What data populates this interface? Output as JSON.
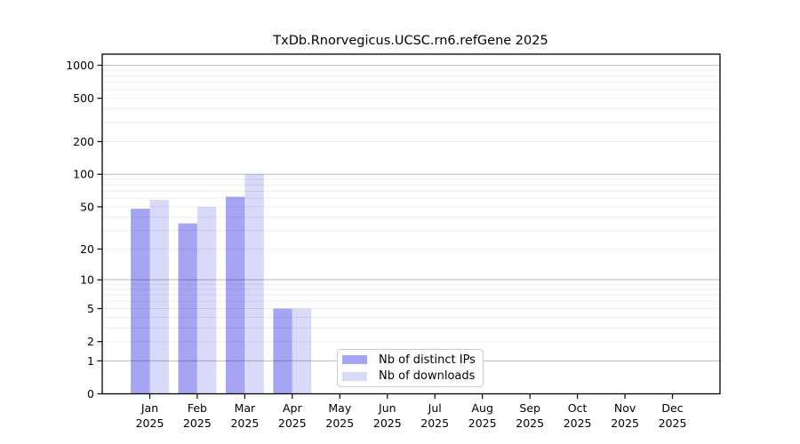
{
  "figure": {
    "title": "TxDb.Rnorvegicus.UCSC.rn6.refGene 2025"
  },
  "chart_data": {
    "type": "bar",
    "title": "TxDb.Rnorvegicus.UCSC.rn6.refGene 2025",
    "categories": [
      "Jan 2025",
      "Feb 2025",
      "Mar 2025",
      "Apr 2025",
      "May 2025",
      "Jun 2025",
      "Jul 2025",
      "Aug 2025",
      "Sep 2025",
      "Oct 2025",
      "Nov 2025",
      "Dec 2025"
    ],
    "x_tick_line1": [
      "Jan",
      "Feb",
      "Mar",
      "Apr",
      "May",
      "Jun",
      "Jul",
      "Aug",
      "Sep",
      "Oct",
      "Nov",
      "Dec"
    ],
    "x_tick_line2": [
      "2025",
      "2025",
      "2025",
      "2025",
      "2025",
      "2025",
      "2025",
      "2025",
      "2025",
      "2025",
      "2025",
      "2025"
    ],
    "series": [
      {
        "name": "Nb of distinct IPs",
        "color": "#a5a5f4",
        "values": [
          48,
          35,
          62,
          5,
          0,
          0,
          0,
          0,
          0,
          0,
          0,
          0
        ]
      },
      {
        "name": "Nb of downloads",
        "color": "#d9d9f8",
        "values": [
          58,
          50,
          100,
          5,
          0,
          0,
          0,
          0,
          0,
          0,
          0,
          0
        ]
      }
    ],
    "y_axis": {
      "scale": "log1p",
      "tick_values": [
        0,
        1,
        2,
        5,
        10,
        20,
        50,
        100,
        200,
        500,
        1000
      ],
      "tick_labels": [
        "0",
        "1",
        "2",
        "5",
        "10",
        "20",
        "50",
        "100",
        "200",
        "500",
        "1000"
      ],
      "major_grid_values": [
        1,
        10,
        100,
        1000
      ],
      "minor_grid_subs": [
        2,
        3,
        4,
        5,
        6,
        7,
        8,
        9
      ],
      "ylim": [
        0,
        1276
      ]
    },
    "legend": {
      "position": "inside-bottom-center",
      "entries": [
        "Nb of distinct IPs",
        "Nb of downloads"
      ]
    },
    "grid": true
  },
  "colors": {
    "background": "#ffffff",
    "axis": "#000000",
    "major_grid": "rgba(0,0,0,0.24)",
    "minor_grid": "rgba(0,0,0,0.07)",
    "legend_border": "#cccccc",
    "bar_distinct_ips": "#a5a5f4",
    "bar_downloads": "#d9d9f8"
  }
}
